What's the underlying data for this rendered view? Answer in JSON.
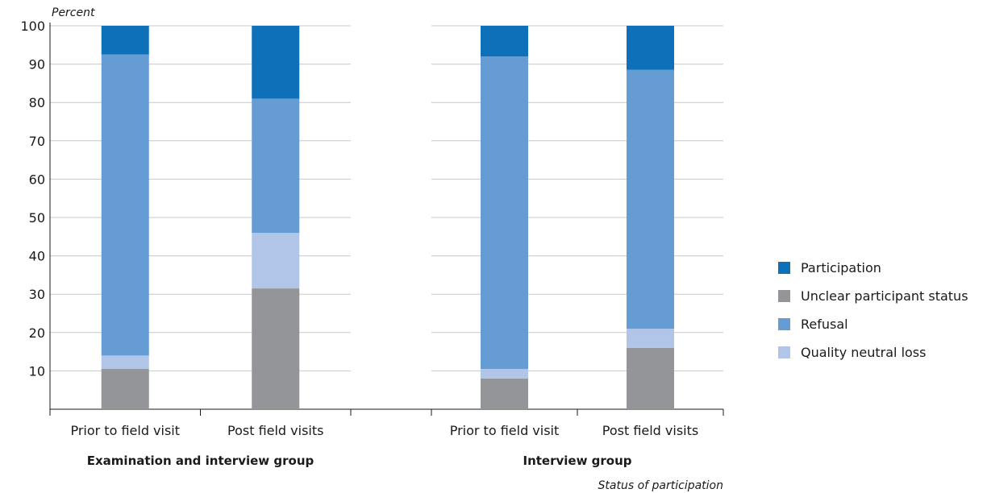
{
  "chart_data": {
    "type": "bar",
    "stacked": true,
    "ylabel": "Percent",
    "xlabel": "Status of participation",
    "ylim": [
      0,
      100
    ],
    "yticks": [
      10,
      20,
      30,
      40,
      50,
      60,
      70,
      80,
      90,
      100
    ],
    "grid": true,
    "legend_position": "right",
    "groups": [
      {
        "label": "Examination and interview group",
        "categories": [
          "Prior to field visit",
          "Post field visits"
        ]
      },
      {
        "label": "Interview group",
        "categories": [
          "Prior to field visit",
          "Post field visits"
        ]
      }
    ],
    "categories": [
      "Prior to field visit",
      "Post field visits",
      "Prior to field visit",
      "Post field visits"
    ],
    "series": [
      {
        "name": "Unclear participant status",
        "color": "#939598",
        "values": [
          10.5,
          31.5,
          8,
          16
        ]
      },
      {
        "name": "Quality neutral loss",
        "color": "#b0c5e8",
        "values": [
          3.5,
          14.5,
          2.5,
          5
        ]
      },
      {
        "name": "Refusal",
        "color": "#669cd4",
        "values": [
          78.5,
          35,
          81.5,
          67.5
        ]
      },
      {
        "name": "Participation",
        "color": "#0d70b8",
        "values": [
          7.5,
          19,
          8,
          11.5
        ]
      }
    ],
    "legend_order": [
      "Participation",
      "Unclear participant status",
      "Refusal",
      "Quality neutral loss"
    ]
  }
}
